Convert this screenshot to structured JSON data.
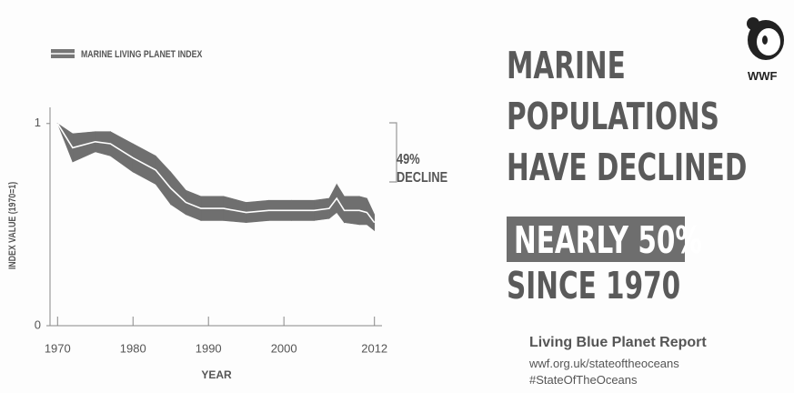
{
  "chart_data": {
    "type": "line",
    "y_label": "INDEX VALUE (1970=1)",
    "x_label": "YEAR",
    "annotation": [
      "49%",
      "DECLINE"
    ],
    "x": [
      1970,
      1972,
      1975,
      1977,
      1980,
      1983,
      1985,
      1987,
      1989,
      1992,
      1995,
      1998,
      2001,
      2004,
      2006,
      2007,
      2008,
      2010,
      2011,
      2012
    ],
    "series": [
      {
        "name": "MARINE LIVING PLANET INDEX",
        "color": "#ffffff",
        "values": [
          1.0,
          0.88,
          0.91,
          0.9,
          0.83,
          0.77,
          0.68,
          0.61,
          0.58,
          0.58,
          0.56,
          0.57,
          0.57,
          0.57,
          0.58,
          0.63,
          0.57,
          0.57,
          0.56,
          0.51
        ]
      }
    ],
    "band": {
      "color": "#6f6f6f",
      "upper": [
        1.0,
        0.95,
        0.96,
        0.96,
        0.9,
        0.84,
        0.76,
        0.67,
        0.64,
        0.64,
        0.61,
        0.62,
        0.62,
        0.62,
        0.63,
        0.7,
        0.64,
        0.64,
        0.63,
        0.55
      ],
      "lower": [
        1.0,
        0.81,
        0.86,
        0.84,
        0.76,
        0.7,
        0.6,
        0.55,
        0.52,
        0.52,
        0.51,
        0.52,
        0.52,
        0.52,
        0.53,
        0.56,
        0.51,
        0.5,
        0.5,
        0.47
      ]
    },
    "xlim": [
      1969,
      2013
    ],
    "xticks": [
      1970,
      1980,
      1990,
      2000,
      2012
    ],
    "ylim": [
      0,
      1.08
    ],
    "yticks": [
      0,
      1
    ]
  },
  "panel": {
    "headline": [
      "MARINE",
      "POPULATIONS",
      "HAVE DECLINED"
    ],
    "highlight": "NEARLY 50%",
    "since": "SINCE 1970",
    "report": "Living Blue Planet Report",
    "url": "wwf.org.uk/stateoftheoceans",
    "hashtag": "#StateOfTheOceans",
    "logo": "WWF"
  }
}
